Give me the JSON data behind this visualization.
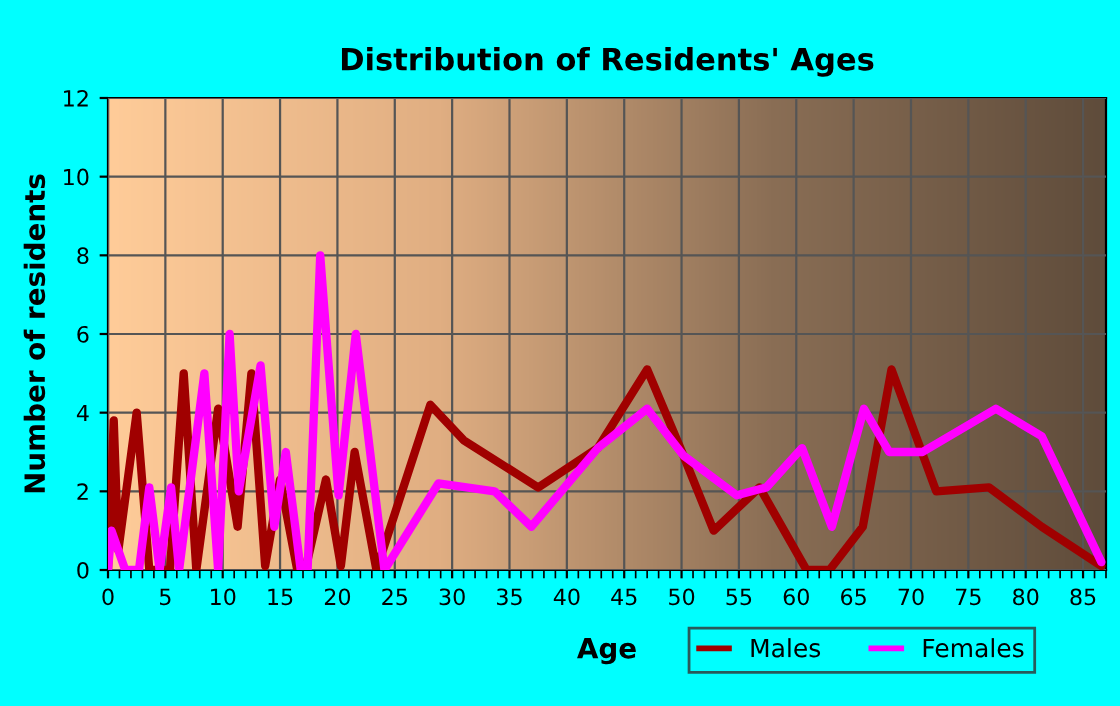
{
  "chart_data": {
    "type": "line",
    "title": "Distribution of Residents' Ages",
    "xlabel": "Age",
    "ylabel": "Number of residents",
    "xlim": [
      0,
      87
    ],
    "xticks": [
      0,
      5,
      10,
      15,
      20,
      25,
      30,
      35,
      40,
      45,
      50,
      55,
      60,
      65,
      70,
      75,
      80,
      85
    ],
    "ylim": [
      0,
      12
    ],
    "yticks": [
      0,
      2,
      4,
      6,
      8,
      10,
      12
    ],
    "grid": true,
    "legend": "bottom right",
    "marker": "none",
    "line_style": "solid",
    "series": [
      {
        "name": "Males",
        "color": "#a00000",
        "x": [
          0,
          0.5,
          0.9,
          2.5,
          3.6,
          5.4,
          6.6,
          7.7,
          9.6,
          11.3,
          12.5,
          13.7,
          15.0,
          16.5,
          17.2,
          19.0,
          20.3,
          21.5,
          23.4,
          28.1,
          31.0,
          37.5,
          42.7,
          47.0,
          49.9,
          52.8,
          56.8,
          60.9,
          62.9,
          65.8,
          68.3,
          72.2,
          76.8,
          81.4,
          86.6
        ],
        "values": [
          0,
          3.8,
          0.5,
          4,
          0,
          0,
          5,
          0,
          4.1,
          1.1,
          5,
          0.1,
          2.3,
          0,
          0,
          2.3,
          0.1,
          3,
          0,
          4.2,
          3.3,
          2.1,
          3.1,
          5.1,
          3.1,
          1.0,
          2.1,
          0,
          0,
          1.1,
          5.1,
          2.0,
          2.1,
          1.1,
          0.1
        ]
      },
      {
        "name": "Females",
        "color": "#ff00ff",
        "x": [
          0,
          0.3,
          1.5,
          2.7,
          3.6,
          4.5,
          5.5,
          6.2,
          8.4,
          9.6,
          10.6,
          11.4,
          13.3,
          14.5,
          15.5,
          16.8,
          17.4,
          18.5,
          20.1,
          21.6,
          24.1,
          28.8,
          33.7,
          36.9,
          42.7,
          47.0,
          50.2,
          54.8,
          57.4,
          60.5,
          63.1,
          65.9,
          68.1,
          71.0,
          77.4,
          81.4,
          86.6
        ],
        "values": [
          0,
          1,
          0,
          0,
          2.1,
          0,
          2.1,
          0,
          5,
          0,
          6,
          2,
          5.2,
          1.1,
          3,
          0,
          0,
          8,
          1.9,
          6,
          0,
          2.2,
          2.0,
          1.1,
          3.1,
          4.1,
          2.9,
          1.9,
          2.1,
          3.1,
          1.1,
          4.1,
          3.0,
          3.0,
          4.1,
          3.4,
          0.2
        ]
      }
    ]
  }
}
